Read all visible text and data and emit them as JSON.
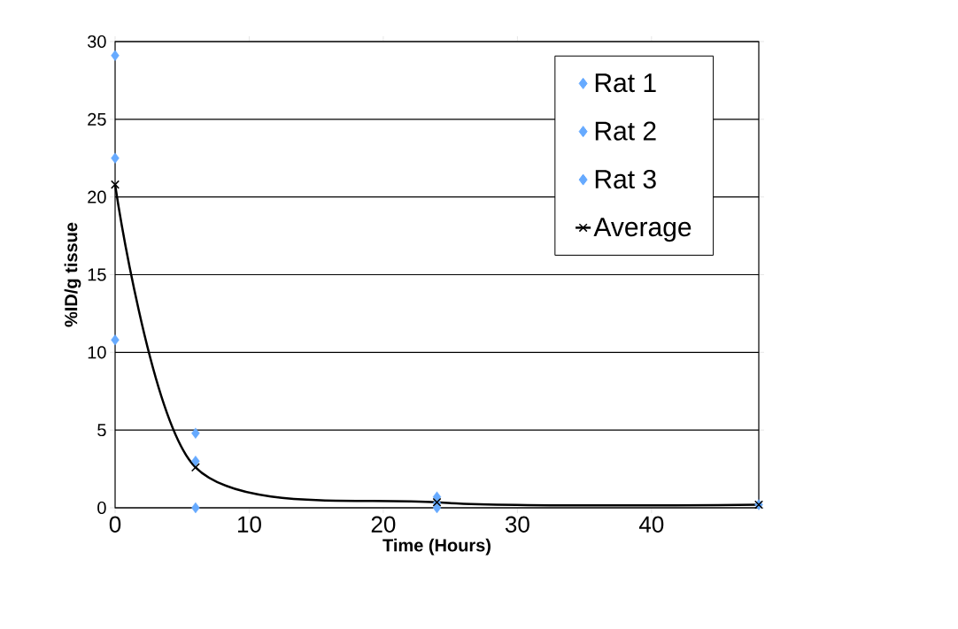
{
  "chart_data": {
    "type": "scatter",
    "xlabel": "Time (Hours)",
    "ylabel": "%ID/g tissue",
    "x": [
      0,
      6,
      24,
      48
    ],
    "series": [
      {
        "name": "Rat 1",
        "color": "#66aaff",
        "marker": "diamond",
        "values": [
          29.1,
          4.8,
          0.7,
          0.2
        ]
      },
      {
        "name": "Rat 2",
        "color": "#66aaff",
        "marker": "diamond",
        "values": [
          22.5,
          3.0,
          0.3,
          null
        ]
      },
      {
        "name": "Rat 3",
        "color": "#66aaff",
        "marker": "diamond",
        "values": [
          10.8,
          0.0,
          0.0,
          null
        ]
      },
      {
        "name": "Average",
        "type": "line",
        "color": "#000000",
        "marker": "cross",
        "values": [
          20.8,
          2.6,
          0.35,
          0.2
        ]
      }
    ],
    "xlim": [
      0,
      48
    ],
    "xticks": [
      0,
      10,
      20,
      30,
      40
    ],
    "ylim": [
      0,
      30
    ],
    "yticks": [
      0,
      5,
      10,
      15,
      20,
      25,
      30
    ],
    "grid": "y",
    "legend": "top right"
  }
}
